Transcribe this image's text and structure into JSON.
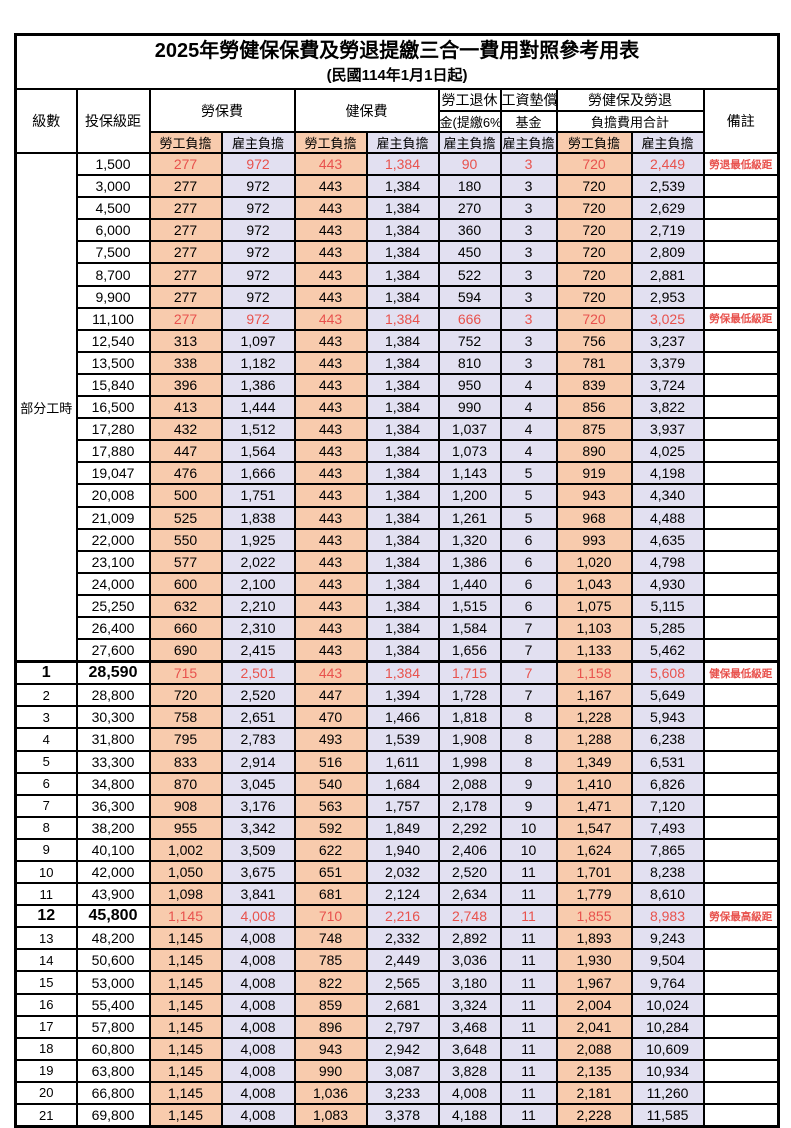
{
  "title": "2025年勞健保保費及勞退提繳三合一費用對照參考用表",
  "subtitle": "(民國114年1月1日起)",
  "part_time_label": "部分工時",
  "header": {
    "level": "級數",
    "bracket": "投保級距",
    "labor_fee": "勞保費",
    "health_fee": "健保費",
    "pension_l1": "勞工退休",
    "pension_l2": "金(提繳6%)",
    "fund_l1": "工資墊償",
    "fund_l2": "基金",
    "total_l1": "勞健保及勞退",
    "total_l2": "負擔費用合計",
    "employee": "勞工負擔",
    "employer": "雇主負擔",
    "note": "備註"
  },
  "colors": {
    "employee_bg": "#F8CBAD",
    "employer_bg": "#E2E0F1",
    "highlight": "#E8524D"
  },
  "notes": {
    "pension_min": "勞退最低級距",
    "labor_min": "勞保最低級距",
    "health_min": "健保最低級距",
    "labor_max": "勞保最高級距"
  },
  "rows": [
    {
      "level": "",
      "bracket": "1,500",
      "le": "277",
      "lr": "972",
      "he": "443",
      "hr": "1,384",
      "pen": "90",
      "fund": "3",
      "se": "720",
      "sr": "2,449",
      "note": "勞退最低級距",
      "hl": true,
      "big": false
    },
    {
      "level": "",
      "bracket": "3,000",
      "le": "277",
      "lr": "972",
      "he": "443",
      "hr": "1,384",
      "pen": "180",
      "fund": "3",
      "se": "720",
      "sr": "2,539",
      "note": "",
      "hl": false,
      "big": false
    },
    {
      "level": "",
      "bracket": "4,500",
      "le": "277",
      "lr": "972",
      "he": "443",
      "hr": "1,384",
      "pen": "270",
      "fund": "3",
      "se": "720",
      "sr": "2,629",
      "note": "",
      "hl": false,
      "big": false
    },
    {
      "level": "",
      "bracket": "6,000",
      "le": "277",
      "lr": "972",
      "he": "443",
      "hr": "1,384",
      "pen": "360",
      "fund": "3",
      "se": "720",
      "sr": "2,719",
      "note": "",
      "hl": false,
      "big": false
    },
    {
      "level": "",
      "bracket": "7,500",
      "le": "277",
      "lr": "972",
      "he": "443",
      "hr": "1,384",
      "pen": "450",
      "fund": "3",
      "se": "720",
      "sr": "2,809",
      "note": "",
      "hl": false,
      "big": false
    },
    {
      "level": "",
      "bracket": "8,700",
      "le": "277",
      "lr": "972",
      "he": "443",
      "hr": "1,384",
      "pen": "522",
      "fund": "3",
      "se": "720",
      "sr": "2,881",
      "note": "",
      "hl": false,
      "big": false
    },
    {
      "level": "",
      "bracket": "9,900",
      "le": "277",
      "lr": "972",
      "he": "443",
      "hr": "1,384",
      "pen": "594",
      "fund": "3",
      "se": "720",
      "sr": "2,953",
      "note": "",
      "hl": false,
      "big": false
    },
    {
      "level": "",
      "bracket": "11,100",
      "le": "277",
      "lr": "972",
      "he": "443",
      "hr": "1,384",
      "pen": "666",
      "fund": "3",
      "se": "720",
      "sr": "3,025",
      "note": "勞保最低級距",
      "hl": true,
      "big": false
    },
    {
      "level": "",
      "bracket": "12,540",
      "le": "313",
      "lr": "1,097",
      "he": "443",
      "hr": "1,384",
      "pen": "752",
      "fund": "3",
      "se": "756",
      "sr": "3,237",
      "note": "",
      "hl": false,
      "big": false
    },
    {
      "level": "",
      "bracket": "13,500",
      "le": "338",
      "lr": "1,182",
      "he": "443",
      "hr": "1,384",
      "pen": "810",
      "fund": "3",
      "se": "781",
      "sr": "3,379",
      "note": "",
      "hl": false,
      "big": false
    },
    {
      "level": "",
      "bracket": "15,840",
      "le": "396",
      "lr": "1,386",
      "he": "443",
      "hr": "1,384",
      "pen": "950",
      "fund": "4",
      "se": "839",
      "sr": "3,724",
      "note": "",
      "hl": false,
      "big": false
    },
    {
      "level": "",
      "bracket": "16,500",
      "le": "413",
      "lr": "1,444",
      "he": "443",
      "hr": "1,384",
      "pen": "990",
      "fund": "4",
      "se": "856",
      "sr": "3,822",
      "note": "",
      "hl": false,
      "big": false
    },
    {
      "level": "",
      "bracket": "17,280",
      "le": "432",
      "lr": "1,512",
      "he": "443",
      "hr": "1,384",
      "pen": "1,037",
      "fund": "4",
      "se": "875",
      "sr": "3,937",
      "note": "",
      "hl": false,
      "big": false
    },
    {
      "level": "",
      "bracket": "17,880",
      "le": "447",
      "lr": "1,564",
      "he": "443",
      "hr": "1,384",
      "pen": "1,073",
      "fund": "4",
      "se": "890",
      "sr": "4,025",
      "note": "",
      "hl": false,
      "big": false
    },
    {
      "level": "",
      "bracket": "19,047",
      "le": "476",
      "lr": "1,666",
      "he": "443",
      "hr": "1,384",
      "pen": "1,143",
      "fund": "5",
      "se": "919",
      "sr": "4,198",
      "note": "",
      "hl": false,
      "big": false
    },
    {
      "level": "",
      "bracket": "20,008",
      "le": "500",
      "lr": "1,751",
      "he": "443",
      "hr": "1,384",
      "pen": "1,200",
      "fund": "5",
      "se": "943",
      "sr": "4,340",
      "note": "",
      "hl": false,
      "big": false
    },
    {
      "level": "",
      "bracket": "21,009",
      "le": "525",
      "lr": "1,838",
      "he": "443",
      "hr": "1,384",
      "pen": "1,261",
      "fund": "5",
      "se": "968",
      "sr": "4,488",
      "note": "",
      "hl": false,
      "big": false
    },
    {
      "level": "",
      "bracket": "22,000",
      "le": "550",
      "lr": "1,925",
      "he": "443",
      "hr": "1,384",
      "pen": "1,320",
      "fund": "6",
      "se": "993",
      "sr": "4,635",
      "note": "",
      "hl": false,
      "big": false
    },
    {
      "level": "",
      "bracket": "23,100",
      "le": "577",
      "lr": "2,022",
      "he": "443",
      "hr": "1,384",
      "pen": "1,386",
      "fund": "6",
      "se": "1,020",
      "sr": "4,798",
      "note": "",
      "hl": false,
      "big": false
    },
    {
      "level": "",
      "bracket": "24,000",
      "le": "600",
      "lr": "2,100",
      "he": "443",
      "hr": "1,384",
      "pen": "1,440",
      "fund": "6",
      "se": "1,043",
      "sr": "4,930",
      "note": "",
      "hl": false,
      "big": false
    },
    {
      "level": "",
      "bracket": "25,250",
      "le": "632",
      "lr": "2,210",
      "he": "443",
      "hr": "1,384",
      "pen": "1,515",
      "fund": "6",
      "se": "1,075",
      "sr": "5,115",
      "note": "",
      "hl": false,
      "big": false
    },
    {
      "level": "",
      "bracket": "26,400",
      "le": "660",
      "lr": "2,310",
      "he": "443",
      "hr": "1,384",
      "pen": "1,584",
      "fund": "7",
      "se": "1,103",
      "sr": "5,285",
      "note": "",
      "hl": false,
      "big": false
    },
    {
      "level": "",
      "bracket": "27,600",
      "le": "690",
      "lr": "2,415",
      "he": "443",
      "hr": "1,384",
      "pen": "1,656",
      "fund": "7",
      "se": "1,133",
      "sr": "5,462",
      "note": "",
      "hl": false,
      "big": false
    },
    {
      "level": "1",
      "bracket": "28,590",
      "le": "715",
      "lr": "2,501",
      "he": "443",
      "hr": "1,384",
      "pen": "1,715",
      "fund": "7",
      "se": "1,158",
      "sr": "5,608",
      "note": "健保最低級距",
      "hl": true,
      "big": true
    },
    {
      "level": "2",
      "bracket": "28,800",
      "le": "720",
      "lr": "2,520",
      "he": "447",
      "hr": "1,394",
      "pen": "1,728",
      "fund": "7",
      "se": "1,167",
      "sr": "5,649",
      "note": "",
      "hl": false,
      "big": false
    },
    {
      "level": "3",
      "bracket": "30,300",
      "le": "758",
      "lr": "2,651",
      "he": "470",
      "hr": "1,466",
      "pen": "1,818",
      "fund": "8",
      "se": "1,228",
      "sr": "5,943",
      "note": "",
      "hl": false,
      "big": false
    },
    {
      "level": "4",
      "bracket": "31,800",
      "le": "795",
      "lr": "2,783",
      "he": "493",
      "hr": "1,539",
      "pen": "1,908",
      "fund": "8",
      "se": "1,288",
      "sr": "6,238",
      "note": "",
      "hl": false,
      "big": false
    },
    {
      "level": "5",
      "bracket": "33,300",
      "le": "833",
      "lr": "2,914",
      "he": "516",
      "hr": "1,611",
      "pen": "1,998",
      "fund": "8",
      "se": "1,349",
      "sr": "6,531",
      "note": "",
      "hl": false,
      "big": false
    },
    {
      "level": "6",
      "bracket": "34,800",
      "le": "870",
      "lr": "3,045",
      "he": "540",
      "hr": "1,684",
      "pen": "2,088",
      "fund": "9",
      "se": "1,410",
      "sr": "6,826",
      "note": "",
      "hl": false,
      "big": false
    },
    {
      "level": "7",
      "bracket": "36,300",
      "le": "908",
      "lr": "3,176",
      "he": "563",
      "hr": "1,757",
      "pen": "2,178",
      "fund": "9",
      "se": "1,471",
      "sr": "7,120",
      "note": "",
      "hl": false,
      "big": false
    },
    {
      "level": "8",
      "bracket": "38,200",
      "le": "955",
      "lr": "3,342",
      "he": "592",
      "hr": "1,849",
      "pen": "2,292",
      "fund": "10",
      "se": "1,547",
      "sr": "7,493",
      "note": "",
      "hl": false,
      "big": false
    },
    {
      "level": "9",
      "bracket": "40,100",
      "le": "1,002",
      "lr": "3,509",
      "he": "622",
      "hr": "1,940",
      "pen": "2,406",
      "fund": "10",
      "se": "1,624",
      "sr": "7,865",
      "note": "",
      "hl": false,
      "big": false
    },
    {
      "level": "10",
      "bracket": "42,000",
      "le": "1,050",
      "lr": "3,675",
      "he": "651",
      "hr": "2,032",
      "pen": "2,520",
      "fund": "11",
      "se": "1,701",
      "sr": "8,238",
      "note": "",
      "hl": false,
      "big": false
    },
    {
      "level": "11",
      "bracket": "43,900",
      "le": "1,098",
      "lr": "3,841",
      "he": "681",
      "hr": "2,124",
      "pen": "2,634",
      "fund": "11",
      "se": "1,779",
      "sr": "8,610",
      "note": "",
      "hl": false,
      "big": false
    },
    {
      "level": "12",
      "bracket": "45,800",
      "le": "1,145",
      "lr": "4,008",
      "he": "710",
      "hr": "2,216",
      "pen": "2,748",
      "fund": "11",
      "se": "1,855",
      "sr": "8,983",
      "note": "勞保最高級距",
      "hl": true,
      "big": true
    },
    {
      "level": "13",
      "bracket": "48,200",
      "le": "1,145",
      "lr": "4,008",
      "he": "748",
      "hr": "2,332",
      "pen": "2,892",
      "fund": "11",
      "se": "1,893",
      "sr": "9,243",
      "note": "",
      "hl": false,
      "big": false
    },
    {
      "level": "14",
      "bracket": "50,600",
      "le": "1,145",
      "lr": "4,008",
      "he": "785",
      "hr": "2,449",
      "pen": "3,036",
      "fund": "11",
      "se": "1,930",
      "sr": "9,504",
      "note": "",
      "hl": false,
      "big": false
    },
    {
      "level": "15",
      "bracket": "53,000",
      "le": "1,145",
      "lr": "4,008",
      "he": "822",
      "hr": "2,565",
      "pen": "3,180",
      "fund": "11",
      "se": "1,967",
      "sr": "9,764",
      "note": "",
      "hl": false,
      "big": false
    },
    {
      "level": "16",
      "bracket": "55,400",
      "le": "1,145",
      "lr": "4,008",
      "he": "859",
      "hr": "2,681",
      "pen": "3,324",
      "fund": "11",
      "se": "2,004",
      "sr": "10,024",
      "note": "",
      "hl": false,
      "big": false
    },
    {
      "level": "17",
      "bracket": "57,800",
      "le": "1,145",
      "lr": "4,008",
      "he": "896",
      "hr": "2,797",
      "pen": "3,468",
      "fund": "11",
      "se": "2,041",
      "sr": "10,284",
      "note": "",
      "hl": false,
      "big": false
    },
    {
      "level": "18",
      "bracket": "60,800",
      "le": "1,145",
      "lr": "4,008",
      "he": "943",
      "hr": "2,942",
      "pen": "3,648",
      "fund": "11",
      "se": "2,088",
      "sr": "10,609",
      "note": "",
      "hl": false,
      "big": false
    },
    {
      "level": "19",
      "bracket": "63,800",
      "le": "1,145",
      "lr": "4,008",
      "he": "990",
      "hr": "3,087",
      "pen": "3,828",
      "fund": "11",
      "se": "2,135",
      "sr": "10,934",
      "note": "",
      "hl": false,
      "big": false
    },
    {
      "level": "20",
      "bracket": "66,800",
      "le": "1,145",
      "lr": "4,008",
      "he": "1,036",
      "hr": "3,233",
      "pen": "4,008",
      "fund": "11",
      "se": "2,181",
      "sr": "11,260",
      "note": "",
      "hl": false,
      "big": false
    },
    {
      "level": "21",
      "bracket": "69,800",
      "le": "1,145",
      "lr": "4,008",
      "he": "1,083",
      "hr": "3,378",
      "pen": "4,188",
      "fund": "11",
      "se": "2,228",
      "sr": "11,585",
      "note": "",
      "hl": false,
      "big": false
    }
  ]
}
